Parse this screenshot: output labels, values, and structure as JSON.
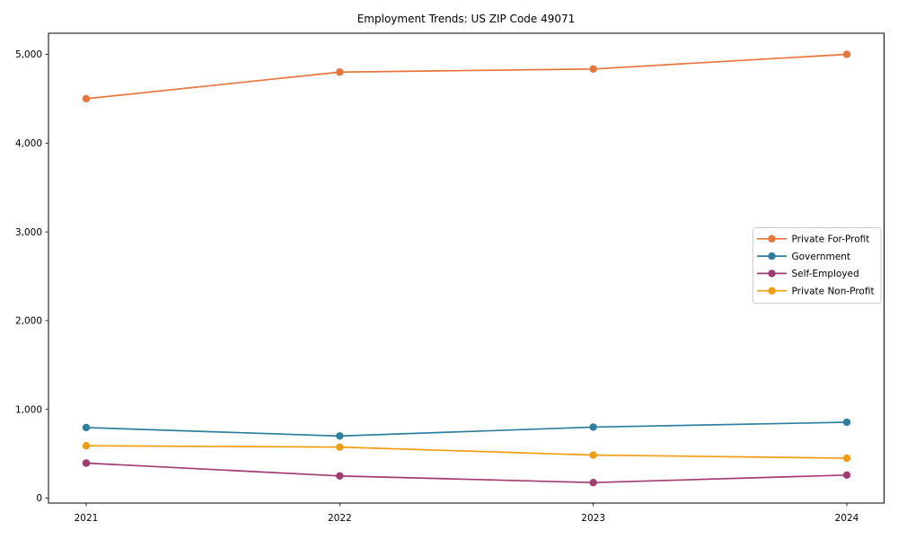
{
  "chart_data": {
    "type": "line",
    "title": "Employment Trends: US ZIP Code 49071",
    "x": [
      "2021",
      "2022",
      "2023",
      "2024"
    ],
    "series": [
      {
        "name": "Private For-Profit",
        "color": "#E8763C",
        "values": [
          4500,
          4800,
          4835,
          5000
        ]
      },
      {
        "name": "Government",
        "color": "#2E7FA0",
        "values": [
          795,
          700,
          800,
          855
        ]
      },
      {
        "name": "Self-Employed",
        "color": "#A23B72",
        "values": [
          395,
          250,
          175,
          260
        ]
      },
      {
        "name": "Private Non-Profit",
        "color": "#F29C11",
        "values": [
          590,
          575,
          485,
          450
        ]
      }
    ],
    "xlabel": "",
    "ylabel": "",
    "ylim": [
      0,
      5000
    ],
    "yticks": [
      0,
      1000,
      2000,
      3000,
      4000,
      5000
    ],
    "ytick_labels": [
      "0",
      "1,000",
      "2,000",
      "3,000",
      "4,000",
      "5,000"
    ],
    "grid": false,
    "legend_position": "center-right",
    "marker": "circle",
    "frame_color": "#000000",
    "legend_border_color": "#cccccc"
  }
}
